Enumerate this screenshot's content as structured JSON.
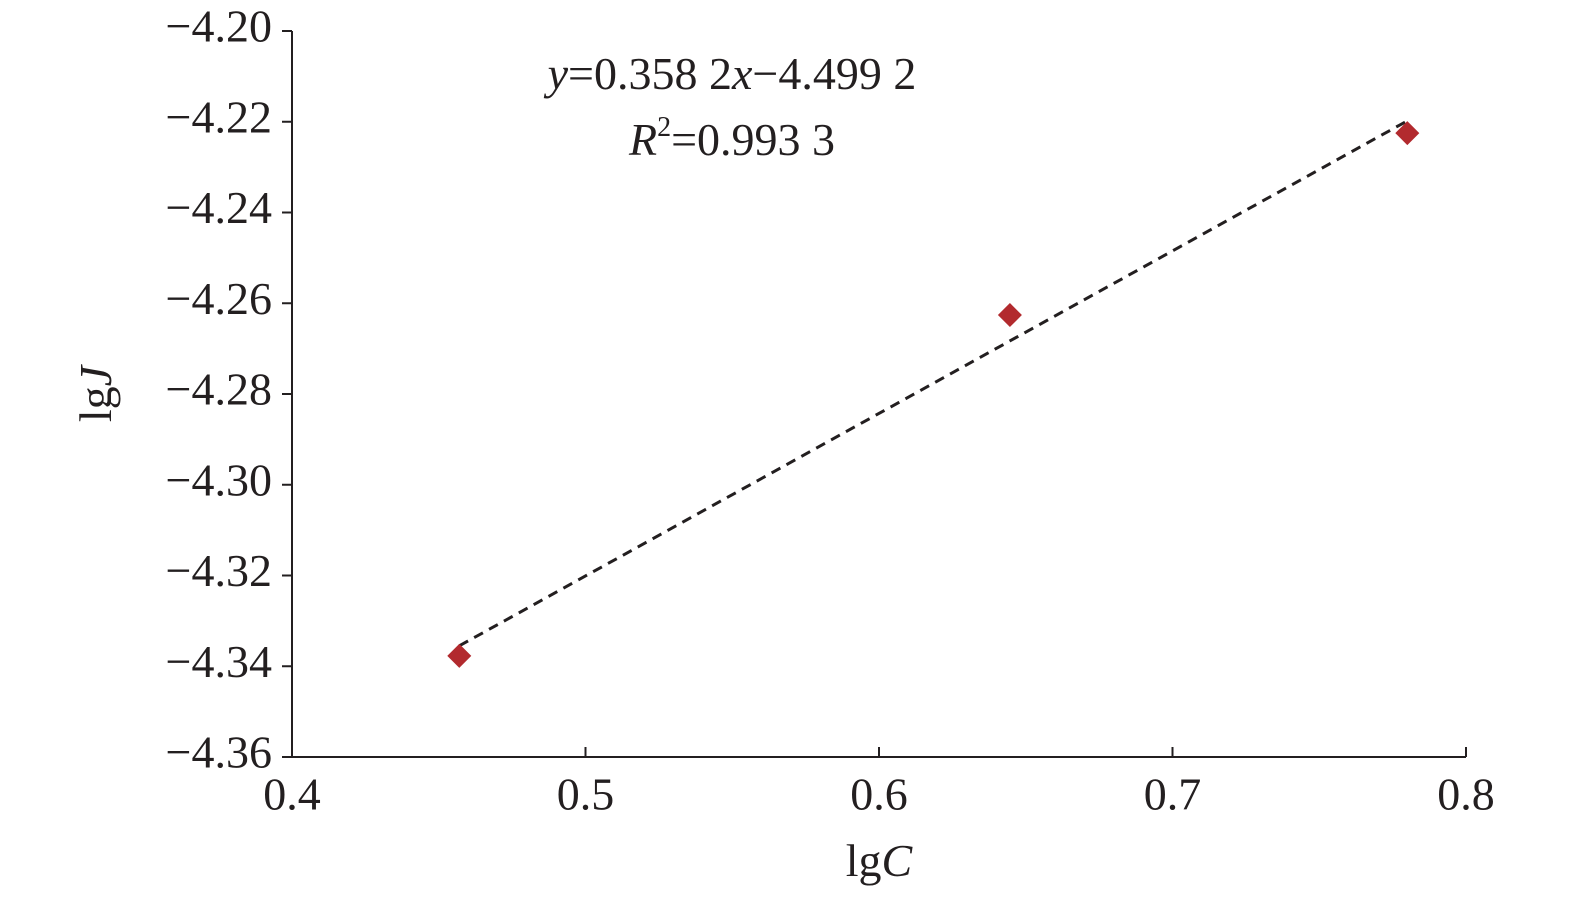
{
  "chart_data": {
    "type": "scatter",
    "x": [
      0.457,
      0.6446,
      0.78
    ],
    "series": [
      {
        "color": "#b22a2e",
        "values": [
          -4.3377,
          -4.2626,
          -4.2225
        ]
      }
    ],
    "trendline": {
      "slope": 0.3582,
      "intercept": -4.4992,
      "color": "#231f20",
      "dashed": true
    },
    "annotations": [
      [
        {
          "text": "y",
          "italic": true
        },
        {
          "text": "=0.358 2"
        },
        {
          "text": "x",
          "italic": true
        },
        {
          "text": "−4.499 2"
        }
      ],
      [
        {
          "text": "R",
          "italic": true
        },
        {
          "text": "2",
          "sup": true
        },
        {
          "text": "=0.993 3"
        }
      ]
    ],
    "xlabel": [
      {
        "text": "lg"
      },
      {
        "text": "C",
        "italic": true
      }
    ],
    "ylabel": [
      {
        "text": "lg"
      },
      {
        "text": "J",
        "italic": true
      }
    ],
    "xlim": [
      0.4,
      0.8
    ],
    "xticks": [
      0.4,
      0.5,
      0.6,
      0.7,
      0.8
    ],
    "ylim": [
      -4.36,
      -4.2
    ],
    "yticks": [
      {
        "value": -4.2,
        "label": "−4.20"
      },
      {
        "value": -4.22,
        "label": "−4.22"
      },
      {
        "value": -4.24,
        "label": "−4.24"
      },
      {
        "value": -4.26,
        "label": "−4.26"
      },
      {
        "value": -4.28,
        "label": "−4.28"
      },
      {
        "value": -4.3,
        "label": "−4.30"
      },
      {
        "value": -4.32,
        "label": "−4.32"
      },
      {
        "value": -4.34,
        "label": "−4.34"
      },
      {
        "value": -4.36,
        "label": "−4.36"
      }
    ],
    "grid": false
  }
}
